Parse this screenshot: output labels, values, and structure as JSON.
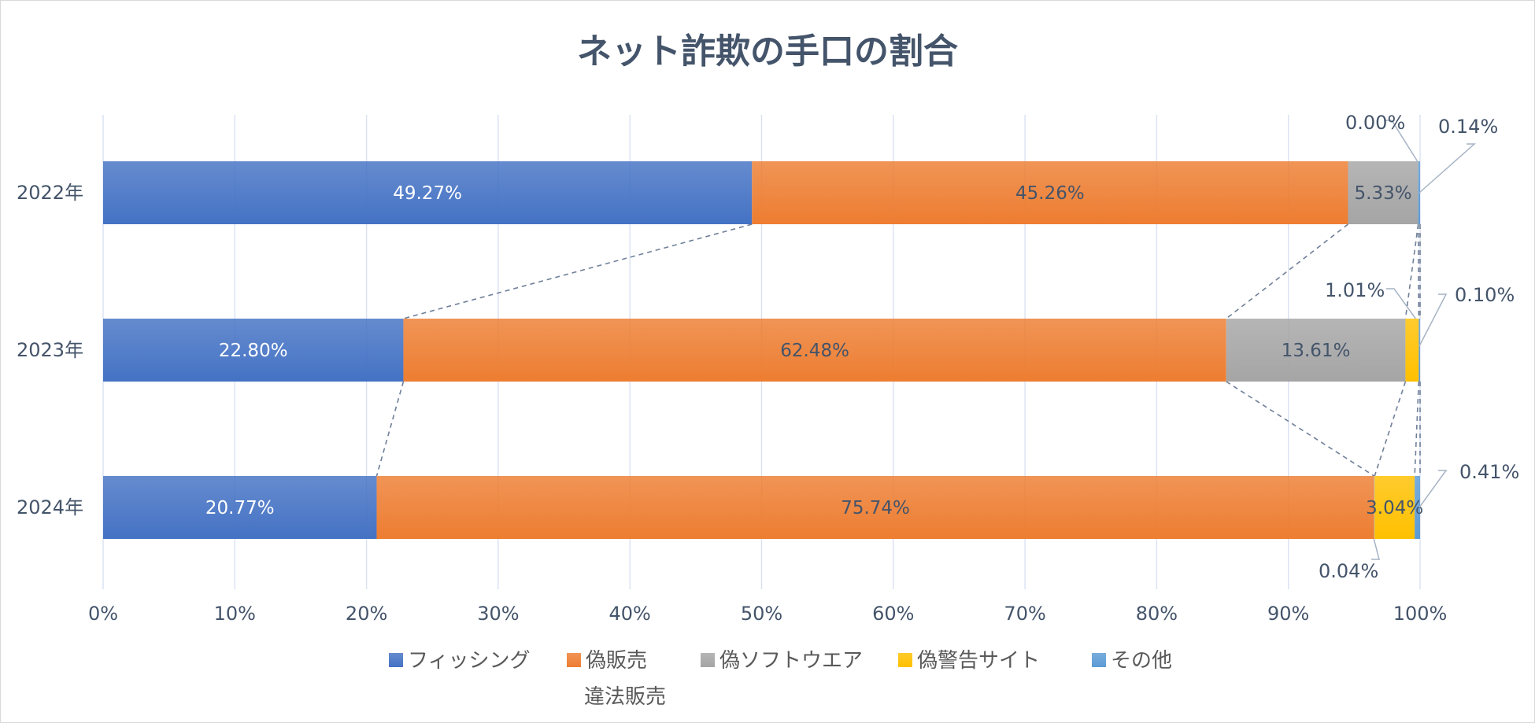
{
  "chart_data": {
    "type": "bar",
    "orientation": "horizontal",
    "stacked": "percent",
    "title": "ネット詐欺の手口の割合",
    "categories": [
      "2022年",
      "2023年",
      "2024年"
    ],
    "series": [
      {
        "name": "フィッシング",
        "values": [
          49.27,
          22.8,
          20.77
        ],
        "labels": [
          "49.27%",
          "22.80%",
          "20.77%"
        ],
        "color": "#4472c4",
        "label_color": "#ffffff"
      },
      {
        "name": "偽販売",
        "values": [
          45.26,
          62.48,
          75.74
        ],
        "labels": [
          "45.26%",
          "62.48%",
          "75.74%"
        ],
        "color": "#ed7d31",
        "label_color": "#44546a"
      },
      {
        "name": "偽ソフトウエア",
        "values": [
          5.33,
          13.61,
          0.04
        ],
        "labels": [
          "5.33%",
          "13.61%",
          "0.04%"
        ],
        "color": "#a5a5a5",
        "label_color": "#44546a"
      },
      {
        "name": "偽警告サイト",
        "values": [
          0.0,
          1.01,
          3.04
        ],
        "labels": [
          "0.00%",
          "1.01%",
          "3.04%"
        ],
        "color": "#ffc000",
        "label_color": "#44546a"
      },
      {
        "name": "その他",
        "values": [
          0.14,
          0.1,
          0.41
        ],
        "labels": [
          "0.14%",
          "0.10%",
          "0.41%"
        ],
        "color": "#5b9bd5",
        "label_color": "#44546a"
      }
    ],
    "x_ticks": [
      "0%",
      "10%",
      "20%",
      "30%",
      "40%",
      "50%",
      "60%",
      "70%",
      "80%",
      "90%",
      "100%"
    ],
    "xlim": [
      0,
      100
    ],
    "grid": true,
    "series_lines": true,
    "legend_position": "bottom",
    "legend_extra_text": "違法販売",
    "colors": {
      "title": "#44546a",
      "text": "#44546a",
      "legend_text": "#595959",
      "grid": "#d9e1f2",
      "series_line": "#6f7f99"
    }
  }
}
